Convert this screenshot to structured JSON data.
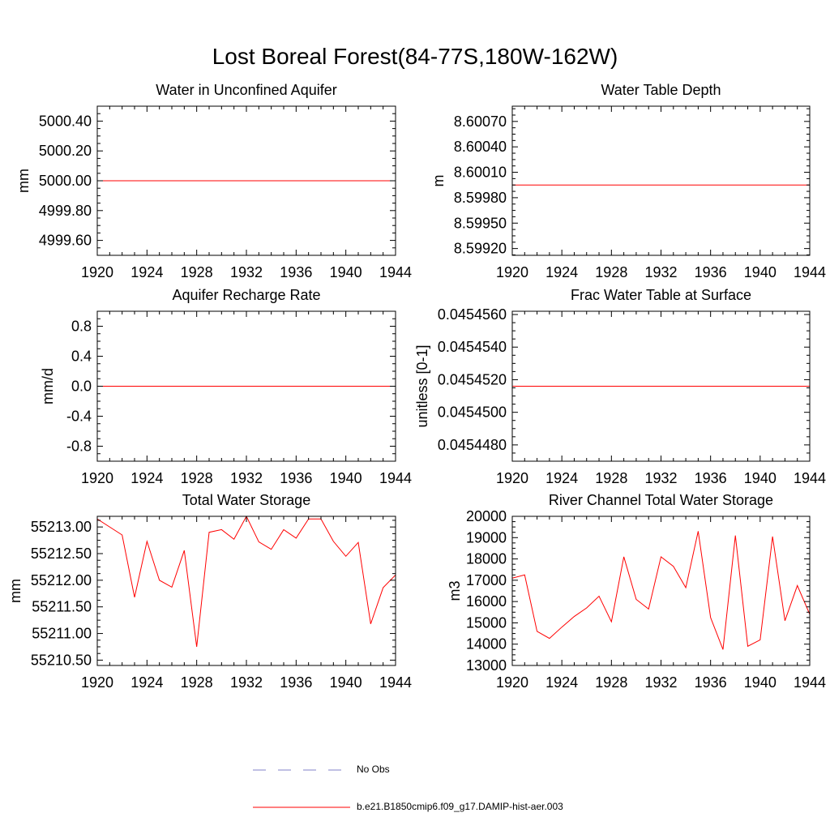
{
  "title": "Lost Boreal Forest(84-77S,180W-162W)",
  "chart_data": [
    {
      "type": "line",
      "title": "Water in Unconfined Aquifer",
      "ylabel": "mm",
      "xlim": [
        1920,
        1944
      ],
      "ylim": [
        4999.5,
        5000.5
      ],
      "xticks": [
        "1920",
        "1924",
        "1928",
        "1932",
        "1936",
        "1940",
        "1944"
      ],
      "yticks": [
        {
          "value": 4999.6,
          "label": "4999.60"
        },
        {
          "value": 4999.8,
          "label": "4999.80"
        },
        {
          "value": 5000.0,
          "label": "5000.00"
        },
        {
          "value": 5000.2,
          "label": "5000.20"
        },
        {
          "value": 5000.4,
          "label": "5000.40"
        }
      ],
      "series": [
        {
          "name": "b.e21.B1850cmip6.f09_g17.DAMIP-hist-aer.003",
          "x": [
            1920,
            1944
          ],
          "values": [
            5000.0,
            5000.0
          ]
        }
      ]
    },
    {
      "type": "line",
      "title": "Water Table Depth",
      "ylabel": "m",
      "xlim": [
        1920,
        1944
      ],
      "ylim": [
        8.59912,
        8.60088
      ],
      "xticks": [
        "1920",
        "1924",
        "1928",
        "1932",
        "1936",
        "1940",
        "1944"
      ],
      "yticks": [
        {
          "value": 8.5992,
          "label": "8.59920"
        },
        {
          "value": 8.5995,
          "label": "8.59950"
        },
        {
          "value": 8.5998,
          "label": "8.59980"
        },
        {
          "value": 8.6001,
          "label": "8.60010"
        },
        {
          "value": 8.6004,
          "label": "8.60040"
        },
        {
          "value": 8.6007,
          "label": "8.60070"
        }
      ],
      "series": [
        {
          "name": "b.e21.B1850cmip6.f09_g17.DAMIP-hist-aer.003",
          "x": [
            1920,
            1944
          ],
          "values": [
            8.59995,
            8.59995
          ]
        }
      ]
    },
    {
      "type": "line",
      "title": "Aquifer Recharge Rate",
      "ylabel": "mm/d",
      "xlim": [
        1920,
        1944
      ],
      "ylim": [
        -1.0,
        1.0
      ],
      "xticks": [
        "1920",
        "1924",
        "1928",
        "1932",
        "1936",
        "1940",
        "1944"
      ],
      "yticks": [
        {
          "value": -0.8,
          "label": "-0.8"
        },
        {
          "value": -0.4,
          "label": "-0.4"
        },
        {
          "value": 0.0,
          "label": "0.0"
        },
        {
          "value": 0.4,
          "label": "0.4"
        },
        {
          "value": 0.8,
          "label": "0.8"
        }
      ],
      "series": [
        {
          "name": "b.e21.B1850cmip6.f09_g17.DAMIP-hist-aer.003",
          "x": [
            1920,
            1944
          ],
          "values": [
            0.0,
            0.0
          ]
        }
      ]
    },
    {
      "type": "line",
      "title": "Frac Water Table at Surface",
      "ylabel": "unitless [0-1]",
      "xlim": [
        1920,
        1944
      ],
      "ylim": [
        0.045447,
        0.0454562
      ],
      "xticks": [
        "1920",
        "1924",
        "1928",
        "1932",
        "1936",
        "1940",
        "1944"
      ],
      "yticks": [
        {
          "value": 0.045448,
          "label": "0.0454480"
        },
        {
          "value": 0.04545,
          "label": "0.0454500"
        },
        {
          "value": 0.045452,
          "label": "0.0454520"
        },
        {
          "value": 0.045454,
          "label": "0.0454540"
        },
        {
          "value": 0.045456,
          "label": "0.0454560"
        }
      ],
      "series": [
        {
          "name": "b.e21.B1850cmip6.f09_g17.DAMIP-hist-aer.003",
          "x": [
            1920,
            1944
          ],
          "values": [
            0.0454516,
            0.0454516
          ]
        }
      ]
    },
    {
      "type": "line",
      "title": "Total Water Storage",
      "ylabel": "mm",
      "xlim": [
        1920,
        1944
      ],
      "ylim": [
        55210.4,
        55213.2
      ],
      "xticks": [
        "1920",
        "1924",
        "1928",
        "1932",
        "1936",
        "1940",
        "1944"
      ],
      "yticks": [
        {
          "value": 55210.5,
          "label": "55210.50"
        },
        {
          "value": 55211.0,
          "label": "55211.00"
        },
        {
          "value": 55211.5,
          "label": "55211.50"
        },
        {
          "value": 55212.0,
          "label": "55212.00"
        },
        {
          "value": 55212.5,
          "label": "55212.50"
        },
        {
          "value": 55213.0,
          "label": "55213.00"
        }
      ],
      "series": [
        {
          "name": "b.e21.B1850cmip6.f09_g17.DAMIP-hist-aer.003",
          "x": [
            1920,
            1922,
            1923,
            1924,
            1925,
            1926,
            1927,
            1928,
            1929,
            1930,
            1931,
            1932,
            1933,
            1934,
            1935,
            1936,
            1937,
            1938,
            1939,
            1940,
            1941,
            1942,
            1943,
            1944
          ],
          "values": [
            55213.15,
            55212.85,
            55211.68,
            55212.73,
            55212.0,
            55211.87,
            55212.56,
            55210.75,
            55212.9,
            55212.95,
            55212.77,
            55213.2,
            55212.72,
            55212.58,
            55212.95,
            55212.79,
            55213.15,
            55213.15,
            55212.73,
            55212.45,
            55212.71,
            55211.18,
            55211.86,
            55212.1
          ]
        }
      ]
    },
    {
      "type": "line",
      "title": "River Channel Total Water Storage",
      "ylabel": "m3",
      "xlim": [
        1920,
        1944
      ],
      "ylim": [
        13000,
        20000
      ],
      "xticks": [
        "1920",
        "1924",
        "1928",
        "1932",
        "1936",
        "1940",
        "1944"
      ],
      "yticks": [
        {
          "value": 13000,
          "label": "13000"
        },
        {
          "value": 14000,
          "label": "14000"
        },
        {
          "value": 15000,
          "label": "15000"
        },
        {
          "value": 16000,
          "label": "16000"
        },
        {
          "value": 17000,
          "label": "17000"
        },
        {
          "value": 18000,
          "label": "18000"
        },
        {
          "value": 19000,
          "label": "19000"
        },
        {
          "value": 20000,
          "label": "20000"
        }
      ],
      "series": [
        {
          "name": "b.e21.B1850cmip6.f09_g17.DAMIP-hist-aer.003",
          "x": [
            1920,
            1921,
            1922,
            1923,
            1924,
            1925,
            1926,
            1927,
            1928,
            1929,
            1930,
            1931,
            1932,
            1933,
            1934,
            1935,
            1936,
            1937,
            1938,
            1939,
            1940,
            1941,
            1942,
            1943,
            1944
          ],
          "values": [
            17100,
            17250,
            14600,
            14270,
            14800,
            15300,
            15700,
            16250,
            15050,
            18100,
            16100,
            15650,
            18100,
            17650,
            16650,
            19300,
            15250,
            13750,
            19100,
            13900,
            14200,
            19050,
            15100,
            16750,
            15400
          ]
        }
      ]
    }
  ],
  "legend": [
    {
      "label": "No Obs",
      "color": "#8080c8",
      "style": "dashed"
    },
    {
      "label": "b.e21.B1850cmip6.f09_g17.DAMIP-hist-aer.003",
      "color": "#ff0000",
      "style": "solid"
    }
  ]
}
